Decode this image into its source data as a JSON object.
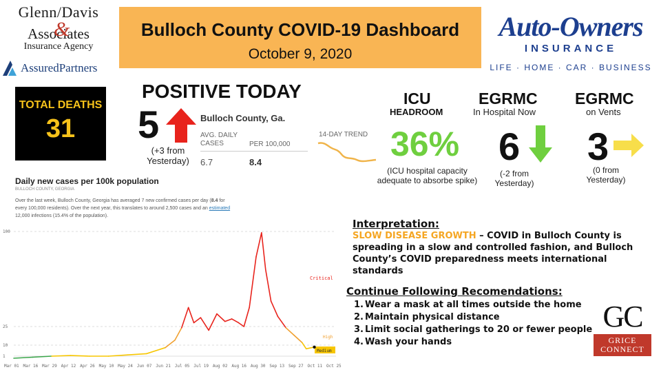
{
  "header": {
    "title": "Bulloch County COVID-19 Dashboard",
    "date": "October 9, 2020"
  },
  "sponsors": {
    "left": {
      "line1": "Glenn/Davis",
      "amp": "&",
      "line2": "Associates",
      "line3": "Insurance Agency",
      "line4": "AssuredPartners"
    },
    "right": {
      "line1": "Auto-Owners",
      "line2": "INSURANCE",
      "line3": "LIFE · HOME · CAR · BUSINESS"
    },
    "bottom": {
      "mark": "GC",
      "line1": "GRICE",
      "line2": "CONNECT"
    }
  },
  "deaths": {
    "label": "TOTAL DEATHS",
    "value": "31"
  },
  "positive": {
    "title": "POSITIVE TODAY",
    "value": "5",
    "change": "(+3 from Yesterday)",
    "arrow_color": "#e8231c"
  },
  "county_stats": {
    "region": "Bulloch County, Ga.",
    "col1_header": "AVG. DAILY CASES",
    "col2_header": "PER 100,000",
    "col1_value": "6.7",
    "col2_value": "8.4",
    "trend_label": "14-DAY TREND",
    "trend_color": "#f0b44a"
  },
  "icu": {
    "title": "ICU",
    "subtitle": "HEADROOM",
    "value": "36%",
    "note": "(ICU hospital capacity adequate to absorbe spike)",
    "color": "#6fcf3f"
  },
  "hospital": {
    "title": "EGRMC",
    "subtitle": "In Hospital Now",
    "value": "6",
    "change": "(-2 from Yesterday)",
    "arrow_color": "#6fcf3f"
  },
  "vents": {
    "title": "EGRMC",
    "subtitle": "on Vents",
    "value": "3",
    "change": "(0 from Yesterday)",
    "arrow_color": "#f7de4a"
  },
  "chart_header": {
    "title": "Daily new cases per 100k population",
    "subtitle": "BULLOCH COUNTY, GEORGIA",
    "desc_1": "Over the last week, Bulloch County, Georgia has averaged 7 new confirmed cases per day (",
    "desc_bold": "8.4",
    "desc_2": " for every 100,000 residents). Over the next year, this translates to around 2,500 cases and an ",
    "desc_link": "estimated",
    "desc_3": " 12,000 infections (15.4% of the population)."
  },
  "chart_data": {
    "type": "line",
    "title": "Daily new cases per 100k population",
    "x_labels": [
      "Mar 01",
      "Mar 16",
      "Mar 29",
      "Apr 12",
      "Apr 26",
      "May 10",
      "May 24",
      "Jun 07",
      "Jun 21",
      "Jul 05",
      "Jul 19",
      "Aug 02",
      "Aug 16",
      "Aug 30",
      "Sep 13",
      "Sep 27",
      "Oct 11",
      "Oct 25"
    ],
    "y_ticks": [
      1,
      10,
      25,
      100
    ],
    "y_scale": "piecewise",
    "threshold_labels": [
      {
        "label": "Critical",
        "color": "#e8231c"
      },
      {
        "label": "High",
        "color": "#f0a030"
      },
      {
        "label": "Medium",
        "color": "#f7c600"
      }
    ],
    "series": [
      {
        "values": [
          [
            "2020-03-01",
            0
          ],
          [
            "2020-03-15",
            0.5
          ],
          [
            "2020-03-29",
            1
          ],
          [
            "2020-04-12",
            1.5
          ],
          [
            "2020-04-26",
            1
          ],
          [
            "2020-05-10",
            1
          ],
          [
            "2020-05-24",
            2
          ],
          [
            "2020-06-07",
            3
          ],
          [
            "2020-06-21",
            8
          ],
          [
            "2020-06-28",
            14
          ],
          [
            "2020-07-03",
            24
          ],
          [
            "2020-07-08",
            40
          ],
          [
            "2020-07-12",
            28
          ],
          [
            "2020-07-17",
            32
          ],
          [
            "2020-07-23",
            22
          ],
          [
            "2020-07-29",
            35
          ],
          [
            "2020-08-04",
            29
          ],
          [
            "2020-08-09",
            31
          ],
          [
            "2020-08-14",
            28
          ],
          [
            "2020-08-18",
            25
          ],
          [
            "2020-08-22",
            40
          ],
          [
            "2020-08-27",
            80
          ],
          [
            "2020-08-31",
            99
          ],
          [
            "2020-09-03",
            70
          ],
          [
            "2020-09-07",
            45
          ],
          [
            "2020-09-12",
            33
          ],
          [
            "2020-09-18",
            24
          ],
          [
            "2020-09-24",
            18
          ],
          [
            "2020-09-30",
            12
          ],
          [
            "2020-10-03",
            7
          ],
          [
            "2020-10-09",
            8.4
          ]
        ],
        "color_by_level": true
      }
    ],
    "current": {
      "date": "2020-10-09",
      "value": 8.4
    }
  },
  "interpretation": {
    "title": "Interpretation:",
    "highlight": "SLOW DISEASE GROWTH",
    "body": " – COVID in Bulloch County is spreading in a slow and controlled fashion, and Bulloch County’s COVID preparedness meets international standards"
  },
  "recommendations": {
    "title": "Continue Following Recomendations:",
    "items": [
      "Wear a mask at all times outside the home",
      "Maintain physical distance",
      "Limit social gatherings to 20 or fewer people",
      "Wash your hands"
    ]
  }
}
